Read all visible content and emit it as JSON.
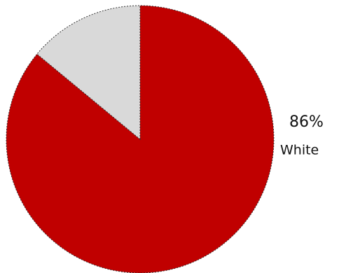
{
  "chart_data": {
    "type": "pie",
    "categories": [
      "White",
      null
    ],
    "values": [
      86,
      14
    ],
    "value_labels": [
      "86%",
      null
    ],
    "colors": [
      "#c00000",
      "#d9d9d9"
    ]
  }
}
